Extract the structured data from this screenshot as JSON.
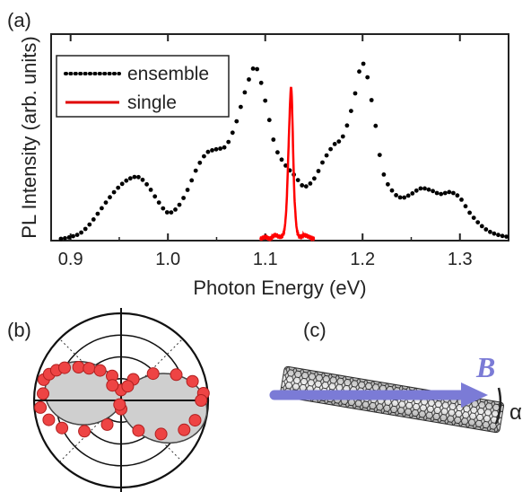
{
  "chart_data": [
    {
      "panel": "(a)",
      "type": "line",
      "xlabel": "Photon Energy (eV)",
      "ylabel": "PL Intensity (arb. units)",
      "xlim": [
        0.88,
        1.35
      ],
      "ylim": [
        0,
        1.0
      ],
      "x_ticks": [
        "0.9",
        "1.0",
        "1.1",
        "1.2",
        "1.3"
      ],
      "y_tick_labels": false,
      "grid": false,
      "legend_position": "top-left",
      "series": [
        {
          "name": "ensemble",
          "style": "dotted",
          "color": "#000000",
          "x": [
            0.89,
            0.9,
            0.91,
            0.92,
            0.93,
            0.94,
            0.95,
            0.96,
            0.97,
            0.98,
            0.99,
            1.0,
            1.01,
            1.02,
            1.03,
            1.04,
            1.05,
            1.06,
            1.07,
            1.08,
            1.09,
            1.1,
            1.11,
            1.12,
            1.13,
            1.14,
            1.15,
            1.16,
            1.17,
            1.18,
            1.19,
            1.2,
            1.21,
            1.22,
            1.23,
            1.24,
            1.25,
            1.26,
            1.27,
            1.28,
            1.29,
            1.3,
            1.31,
            1.32,
            1.33,
            1.34,
            1.35
          ],
          "values": [
            0.0,
            0.01,
            0.03,
            0.08,
            0.15,
            0.22,
            0.28,
            0.32,
            0.33,
            0.28,
            0.2,
            0.14,
            0.17,
            0.26,
            0.38,
            0.46,
            0.48,
            0.5,
            0.62,
            0.8,
            0.92,
            0.74,
            0.5,
            0.4,
            0.34,
            0.28,
            0.32,
            0.42,
            0.5,
            0.55,
            0.72,
            0.94,
            0.72,
            0.38,
            0.26,
            0.22,
            0.24,
            0.27,
            0.26,
            0.24,
            0.25,
            0.22,
            0.14,
            0.08,
            0.04,
            0.02,
            0.01
          ]
        },
        {
          "name": "single",
          "style": "solid",
          "color": "#ff0000",
          "x": [
            1.095,
            1.1,
            1.105,
            1.11,
            1.115,
            1.118,
            1.12,
            1.122,
            1.124,
            1.126,
            1.127,
            1.128,
            1.129,
            1.13,
            1.132,
            1.134,
            1.137,
            1.14,
            1.145,
            1.15
          ],
          "values": [
            0.0,
            0.01,
            0.0,
            0.02,
            0.01,
            0.02,
            0.06,
            0.2,
            0.5,
            0.78,
            0.79,
            0.62,
            0.4,
            0.22,
            0.07,
            0.02,
            0.01,
            0.02,
            0.01,
            0.0
          ]
        }
      ]
    },
    {
      "panel": "(b)",
      "type": "scatter",
      "coordinate_system": "polar",
      "axis_labels_shown": false,
      "series": [
        {
          "name": "",
          "color": "#ee4444",
          "angle_deg": [
            165,
            160,
            155,
            150,
            142,
            135,
            125,
            110,
            90,
            60,
            40,
            25,
            15,
            5,
            0,
            345,
            335,
            320,
            300,
            270,
            240,
            220,
            205,
            195,
            185,
            175,
            120,
            65,
            250
          ],
          "radius": [
            0.92,
            0.88,
            0.82,
            0.75,
            0.62,
            0.52,
            0.42,
            0.3,
            0.12,
            0.28,
            0.48,
            0.7,
            0.85,
            0.95,
            0.92,
            0.88,
            0.8,
            0.6,
            0.4,
            0.1,
            0.32,
            0.55,
            0.75,
            0.86,
            0.93,
            0.9,
            0.2,
            0.18,
            0.05
          ]
        }
      ]
    }
  ],
  "panels": {
    "a_label": "(a)",
    "b_label": "(b)",
    "c_label": "(c)"
  },
  "schematic": {
    "field_symbol": "B",
    "angle_symbol": "α",
    "arrow_color": "#7b7bd6"
  }
}
